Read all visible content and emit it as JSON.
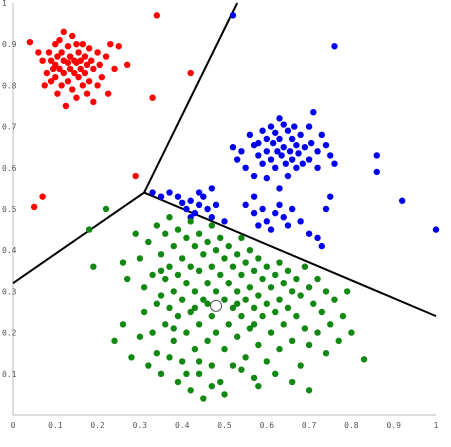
{
  "chart_data": {
    "type": "scatter",
    "title": "",
    "xlabel": "",
    "ylabel": "",
    "xlim": [
      0,
      1
    ],
    "ylim": [
      0,
      1
    ],
    "grid": false,
    "x_ticks": [
      "0",
      "0.1",
      "0.2",
      "0.3",
      "0.4",
      "0.5",
      "0.6",
      "0.7",
      "0.8",
      "0.9",
      "1"
    ],
    "y_ticks": [
      "0",
      "0.1",
      "0.2",
      "0.3",
      "0.4",
      "0.5",
      "0.6",
      "0.7",
      "0.8",
      "0.9",
      "1"
    ],
    "colors": {
      "red": "#ff0000",
      "blue": "#0000ee",
      "green": "#118811",
      "boundary": "#000000"
    },
    "boundaries": [
      {
        "from": [
          0.31,
          0.54
        ],
        "to": [
          0.53,
          1.0
        ]
      },
      {
        "from": [
          0.31,
          0.54
        ],
        "to": [
          0.0,
          0.32
        ]
      },
      {
        "from": [
          0.31,
          0.54
        ],
        "to": [
          1.0,
          0.24
        ]
      }
    ],
    "centroid_marker": [
      0.48,
      0.265
    ],
    "series": [
      {
        "color": "red",
        "points": [
          [
            0.04,
            0.905
          ],
          [
            0.06,
            0.88
          ],
          [
            0.07,
            0.86
          ],
          [
            0.075,
            0.8
          ],
          [
            0.08,
            0.83
          ],
          [
            0.085,
            0.88
          ],
          [
            0.09,
            0.86
          ],
          [
            0.09,
            0.81
          ],
          [
            0.095,
            0.84
          ],
          [
            0.1,
            0.9
          ],
          [
            0.1,
            0.85
          ],
          [
            0.1,
            0.82
          ],
          [
            0.105,
            0.87
          ],
          [
            0.105,
            0.78
          ],
          [
            0.11,
            0.91
          ],
          [
            0.11,
            0.84
          ],
          [
            0.115,
            0.88
          ],
          [
            0.115,
            0.8
          ],
          [
            0.12,
            0.93
          ],
          [
            0.12,
            0.86
          ],
          [
            0.12,
            0.83
          ],
          [
            0.125,
            0.75
          ],
          [
            0.13,
            0.895
          ],
          [
            0.13,
            0.855
          ],
          [
            0.13,
            0.81
          ],
          [
            0.135,
            0.87
          ],
          [
            0.135,
            0.84
          ],
          [
            0.14,
            0.92
          ],
          [
            0.14,
            0.79
          ],
          [
            0.145,
            0.86
          ],
          [
            0.145,
            0.83
          ],
          [
            0.15,
            0.9
          ],
          [
            0.15,
            0.855
          ],
          [
            0.15,
            0.77
          ],
          [
            0.155,
            0.88
          ],
          [
            0.155,
            0.82
          ],
          [
            0.16,
            0.86
          ],
          [
            0.16,
            0.84
          ],
          [
            0.165,
            0.9
          ],
          [
            0.165,
            0.8
          ],
          [
            0.17,
            0.87
          ],
          [
            0.17,
            0.83
          ],
          [
            0.175,
            0.85
          ],
          [
            0.175,
            0.78
          ],
          [
            0.18,
            0.89
          ],
          [
            0.18,
            0.81
          ],
          [
            0.185,
            0.86
          ],
          [
            0.19,
            0.84
          ],
          [
            0.19,
            0.76
          ],
          [
            0.2,
            0.88
          ],
          [
            0.2,
            0.8
          ],
          [
            0.205,
            0.85
          ],
          [
            0.21,
            0.82
          ],
          [
            0.22,
            0.87
          ],
          [
            0.225,
            0.78
          ],
          [
            0.23,
            0.9
          ],
          [
            0.24,
            0.84
          ],
          [
            0.25,
            0.895
          ],
          [
            0.27,
            0.85
          ],
          [
            0.29,
            0.58
          ],
          [
            0.34,
            0.97
          ],
          [
            0.33,
            0.77
          ],
          [
            0.42,
            0.83
          ],
          [
            0.07,
            0.53
          ],
          [
            0.05,
            0.505
          ]
        ]
      },
      {
        "color": "blue",
        "points": [
          [
            0.52,
            0.97
          ],
          [
            0.76,
            0.895
          ],
          [
            0.56,
            0.68
          ],
          [
            0.57,
            0.655
          ],
          [
            0.58,
            0.66
          ],
          [
            0.58,
            0.63
          ],
          [
            0.59,
            0.69
          ],
          [
            0.59,
            0.61
          ],
          [
            0.6,
            0.67
          ],
          [
            0.6,
            0.64
          ],
          [
            0.61,
            0.7
          ],
          [
            0.61,
            0.62
          ],
          [
            0.615,
            0.66
          ],
          [
            0.62,
            0.685
          ],
          [
            0.62,
            0.6
          ],
          [
            0.625,
            0.64
          ],
          [
            0.63,
            0.72
          ],
          [
            0.63,
            0.67
          ],
          [
            0.635,
            0.63
          ],
          [
            0.64,
            0.705
          ],
          [
            0.64,
            0.65
          ],
          [
            0.645,
            0.61
          ],
          [
            0.65,
            0.69
          ],
          [
            0.65,
            0.58
          ],
          [
            0.655,
            0.64
          ],
          [
            0.66,
            0.67
          ],
          [
            0.66,
            0.62
          ],
          [
            0.665,
            0.7
          ],
          [
            0.67,
            0.655
          ],
          [
            0.67,
            0.6
          ],
          [
            0.675,
            0.635
          ],
          [
            0.68,
            0.68
          ],
          [
            0.685,
            0.61
          ],
          [
            0.69,
            0.65
          ],
          [
            0.7,
            0.7
          ],
          [
            0.7,
            0.62
          ],
          [
            0.705,
            0.66
          ],
          [
            0.71,
            0.735
          ],
          [
            0.72,
            0.64
          ],
          [
            0.72,
            0.6
          ],
          [
            0.73,
            0.68
          ],
          [
            0.74,
            0.655
          ],
          [
            0.75,
            0.63
          ],
          [
            0.76,
            0.61
          ],
          [
            0.53,
            0.62
          ],
          [
            0.55,
            0.6
          ],
          [
            0.54,
            0.64
          ],
          [
            0.52,
            0.65
          ],
          [
            0.57,
            0.58
          ],
          [
            0.6,
            0.575
          ],
          [
            0.33,
            0.54
          ],
          [
            0.35,
            0.53
          ],
          [
            0.37,
            0.54
          ],
          [
            0.39,
            0.53
          ],
          [
            0.4,
            0.515
          ],
          [
            0.41,
            0.5
          ],
          [
            0.42,
            0.52
          ],
          [
            0.43,
            0.49
          ],
          [
            0.44,
            0.51
          ],
          [
            0.45,
            0.53
          ],
          [
            0.46,
            0.5
          ],
          [
            0.47,
            0.48
          ],
          [
            0.48,
            0.51
          ],
          [
            0.42,
            0.48
          ],
          [
            0.44,
            0.54
          ],
          [
            0.55,
            0.51
          ],
          [
            0.57,
            0.49
          ],
          [
            0.58,
            0.46
          ],
          [
            0.59,
            0.5
          ],
          [
            0.6,
            0.47
          ],
          [
            0.61,
            0.45
          ],
          [
            0.62,
            0.49
          ],
          [
            0.63,
            0.51
          ],
          [
            0.64,
            0.48
          ],
          [
            0.65,
            0.46
          ],
          [
            0.66,
            0.5
          ],
          [
            0.68,
            0.47
          ],
          [
            0.7,
            0.44
          ],
          [
            0.72,
            0.43
          ],
          [
            0.73,
            0.41
          ],
          [
            0.74,
            0.5
          ],
          [
            0.75,
            0.53
          ],
          [
            0.63,
            0.55
          ],
          [
            0.57,
            0.53
          ],
          [
            0.86,
            0.63
          ],
          [
            0.86,
            0.59
          ],
          [
            0.92,
            0.52
          ],
          [
            1.0,
            0.45
          ],
          [
            0.47,
            0.55
          ],
          [
            0.5,
            0.47
          ]
        ]
      },
      {
        "color": "green",
        "points": [
          [
            0.22,
            0.5
          ],
          [
            0.18,
            0.45
          ],
          [
            0.19,
            0.36
          ],
          [
            0.26,
            0.37
          ],
          [
            0.27,
            0.33
          ],
          [
            0.29,
            0.44
          ],
          [
            0.3,
            0.38
          ],
          [
            0.31,
            0.31
          ],
          [
            0.31,
            0.25
          ],
          [
            0.32,
            0.42
          ],
          [
            0.33,
            0.34
          ],
          [
            0.33,
            0.2
          ],
          [
            0.34,
            0.46
          ],
          [
            0.34,
            0.27
          ],
          [
            0.34,
            0.15
          ],
          [
            0.35,
            0.39
          ],
          [
            0.35,
            0.29
          ],
          [
            0.35,
            0.1
          ],
          [
            0.36,
            0.44
          ],
          [
            0.36,
            0.33
          ],
          [
            0.36,
            0.22
          ],
          [
            0.37,
            0.48
          ],
          [
            0.37,
            0.36
          ],
          [
            0.37,
            0.26
          ],
          [
            0.37,
            0.14
          ],
          [
            0.38,
            0.41
          ],
          [
            0.38,
            0.3
          ],
          [
            0.38,
            0.18
          ],
          [
            0.39,
            0.45
          ],
          [
            0.39,
            0.34
          ],
          [
            0.39,
            0.24
          ],
          [
            0.39,
            0.08
          ],
          [
            0.4,
            0.38
          ],
          [
            0.4,
            0.28
          ],
          [
            0.4,
            0.13
          ],
          [
            0.41,
            0.43
          ],
          [
            0.41,
            0.32
          ],
          [
            0.41,
            0.2
          ],
          [
            0.42,
            0.47
          ],
          [
            0.42,
            0.36
          ],
          [
            0.42,
            0.25
          ],
          [
            0.42,
            0.06
          ],
          [
            0.43,
            0.41
          ],
          [
            0.43,
            0.3
          ],
          [
            0.43,
            0.16
          ],
          [
            0.44,
            0.44
          ],
          [
            0.44,
            0.35
          ],
          [
            0.44,
            0.22
          ],
          [
            0.44,
            0.1
          ],
          [
            0.45,
            0.39
          ],
          [
            0.45,
            0.28
          ],
          [
            0.45,
            0.04
          ],
          [
            0.46,
            0.42
          ],
          [
            0.46,
            0.32
          ],
          [
            0.46,
            0.18
          ],
          [
            0.47,
            0.46
          ],
          [
            0.47,
            0.36
          ],
          [
            0.47,
            0.24
          ],
          [
            0.47,
            0.12
          ],
          [
            0.48,
            0.4
          ],
          [
            0.48,
            0.3
          ],
          [
            0.48,
            0.2
          ],
          [
            0.49,
            0.43
          ],
          [
            0.49,
            0.34
          ],
          [
            0.49,
            0.08
          ],
          [
            0.5,
            0.38
          ],
          [
            0.5,
            0.28
          ],
          [
            0.5,
            0.16
          ],
          [
            0.51,
            0.41
          ],
          [
            0.51,
            0.32
          ],
          [
            0.51,
            0.22
          ],
          [
            0.52,
            0.36
          ],
          [
            0.52,
            0.26
          ],
          [
            0.52,
            0.12
          ],
          [
            0.53,
            0.39
          ],
          [
            0.53,
            0.3
          ],
          [
            0.53,
            0.19
          ],
          [
            0.54,
            0.43
          ],
          [
            0.54,
            0.34
          ],
          [
            0.54,
            0.24
          ],
          [
            0.55,
            0.37
          ],
          [
            0.55,
            0.28
          ],
          [
            0.55,
            0.14
          ],
          [
            0.56,
            0.4
          ],
          [
            0.56,
            0.31
          ],
          [
            0.56,
            0.21
          ],
          [
            0.57,
            0.35
          ],
          [
            0.57,
            0.26
          ],
          [
            0.57,
            0.09
          ],
          [
            0.58,
            0.38
          ],
          [
            0.58,
            0.29
          ],
          [
            0.58,
            0.17
          ],
          [
            0.59,
            0.33
          ],
          [
            0.59,
            0.24
          ],
          [
            0.6,
            0.36
          ],
          [
            0.6,
            0.27
          ],
          [
            0.6,
            0.13
          ],
          [
            0.61,
            0.31
          ],
          [
            0.61,
            0.2
          ],
          [
            0.62,
            0.34
          ],
          [
            0.62,
            0.25
          ],
          [
            0.63,
            0.37
          ],
          [
            0.63,
            0.28
          ],
          [
            0.63,
            0.16
          ],
          [
            0.64,
            0.32
          ],
          [
            0.64,
            0.22
          ],
          [
            0.65,
            0.35
          ],
          [
            0.65,
            0.26
          ],
          [
            0.66,
            0.3
          ],
          [
            0.66,
            0.18
          ],
          [
            0.67,
            0.33
          ],
          [
            0.67,
            0.24
          ],
          [
            0.68,
            0.29
          ],
          [
            0.68,
            0.12
          ],
          [
            0.69,
            0.36
          ],
          [
            0.69,
            0.21
          ],
          [
            0.7,
            0.31
          ],
          [
            0.7,
            0.17
          ],
          [
            0.71,
            0.27
          ],
          [
            0.72,
            0.33
          ],
          [
            0.72,
            0.2
          ],
          [
            0.73,
            0.25
          ],
          [
            0.74,
            0.3
          ],
          [
            0.74,
            0.15
          ],
          [
            0.75,
            0.22
          ],
          [
            0.76,
            0.28
          ],
          [
            0.77,
            0.18
          ],
          [
            0.78,
            0.24
          ],
          [
            0.79,
            0.3
          ],
          [
            0.8,
            0.2
          ],
          [
            0.83,
            0.135
          ],
          [
            0.35,
            0.35
          ],
          [
            0.43,
            0.26
          ],
          [
            0.46,
            0.27
          ],
          [
            0.53,
            0.27
          ],
          [
            0.57,
            0.22
          ],
          [
            0.24,
            0.18
          ],
          [
            0.28,
            0.14
          ],
          [
            0.26,
            0.22
          ],
          [
            0.3,
            0.19
          ],
          [
            0.32,
            0.12
          ],
          [
            0.38,
            0.21
          ],
          [
            0.41,
            0.1
          ],
          [
            0.44,
            0.13
          ],
          [
            0.47,
            0.07
          ],
          [
            0.5,
            0.05
          ],
          [
            0.54,
            0.11
          ],
          [
            0.58,
            0.07
          ],
          [
            0.62,
            0.1
          ],
          [
            0.66,
            0.08
          ],
          [
            0.7,
            0.06
          ]
        ]
      }
    ]
  }
}
